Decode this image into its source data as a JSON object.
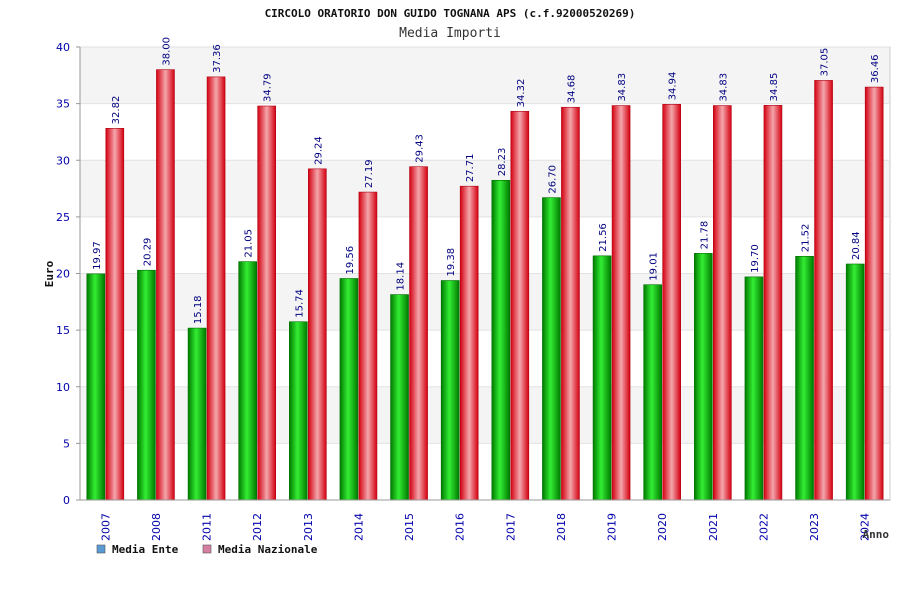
{
  "chart_data": {
    "type": "bar",
    "title": "CIRCOLO ORATORIO DON GUIDO TOGNANA APS (c.f.92000520269)",
    "subtitle": "Media Importi",
    "xlabel": "Anno",
    "ylabel": "Euro",
    "ylim": [
      0,
      40
    ],
    "yticks": [
      "0",
      "5",
      "10",
      "15",
      "20",
      "25",
      "30",
      "35",
      "40"
    ],
    "grid": true,
    "legend_position": "bottom-left",
    "categories": [
      "2007",
      "2008",
      "2011",
      "2012",
      "2013",
      "2014",
      "2015",
      "2016",
      "2017",
      "2018",
      "2019",
      "2020",
      "2021",
      "2022",
      "2023",
      "2024"
    ],
    "series": [
      {
        "name": "Media Ente",
        "color": "#00aa00",
        "legend_color": "#5b9bd5",
        "values": [
          19.97,
          20.29,
          15.18,
          21.05,
          15.74,
          19.56,
          18.14,
          19.38,
          28.23,
          26.7,
          21.56,
          19.01,
          21.78,
          19.7,
          21.52,
          20.84
        ],
        "labels": [
          "19.97",
          "20.29",
          "15.18",
          "21.05",
          "15.74",
          "19.56",
          "18.14",
          "19.38",
          "28.23",
          "26.70",
          "21.56",
          "19.01",
          "21.78",
          "19.70",
          "21.52",
          "20.84"
        ]
      },
      {
        "name": "Media Nazionale",
        "color": "#e8141c",
        "legend_color": "#d77fa1",
        "values": [
          32.82,
          38.0,
          37.36,
          34.79,
          29.24,
          27.19,
          29.43,
          27.71,
          34.32,
          34.68,
          34.83,
          34.94,
          34.83,
          34.85,
          37.05,
          36.46
        ],
        "labels": [
          "32.82",
          "38.00",
          "37.36",
          "34.79",
          "29.24",
          "27.19",
          "29.43",
          "27.71",
          "34.32",
          "34.68",
          "34.83",
          "34.94",
          "34.83",
          "34.85",
          "37.05",
          "36.46"
        ]
      }
    ]
  }
}
